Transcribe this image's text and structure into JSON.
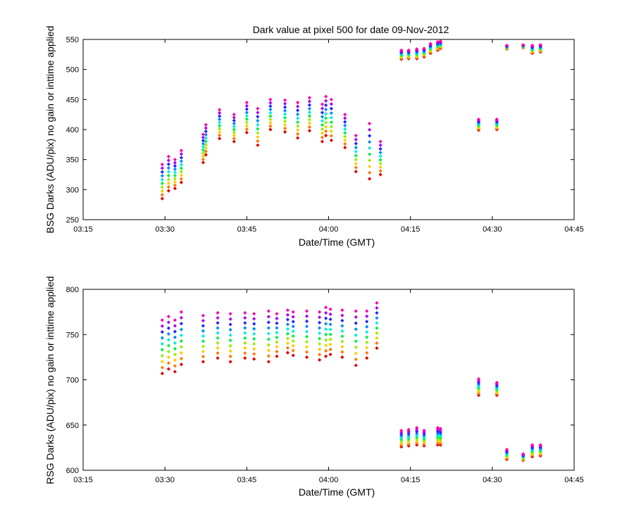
{
  "chart_data": [
    {
      "type": "scatter",
      "title": "Dark value at pixel 500 for date 09-Nov-2012",
      "xlabel": "Date/Time (GMT)",
      "ylabel": "BSG Darks (ADU/pix) no gain or inttime applied",
      "xlim": [
        "03:15",
        "04:45"
      ],
      "ylim": [
        250,
        550
      ],
      "x_ticks": [
        "03:15",
        "03:30",
        "03:45",
        "04:00",
        "04:15",
        "04:30",
        "04:45"
      ],
      "y_ticks": [
        "250",
        "300",
        "350",
        "400",
        "450",
        "500",
        "550"
      ],
      "grid": false,
      "marker": "diamond",
      "color_gradient": [
        "#dd0000",
        "#ff7700",
        "#ffcc00",
        "#99ee00",
        "#00ee44",
        "#00eedd",
        "#0088ff",
        "#2222ff",
        "#aa00ee",
        "#ff00aa"
      ],
      "groups": [
        {
          "times": [
            "03:29:30",
            "03:30:40",
            "03:31:50",
            "03:33:00"
          ],
          "range_min": [
            285,
            298,
            302,
            312
          ],
          "range_max": [
            342,
            355,
            350,
            365
          ]
        },
        {
          "times": [
            "03:37:00",
            "03:37:30",
            "03:40:00",
            "03:42:40"
          ],
          "range_min": [
            345,
            358,
            385,
            380
          ],
          "range_max": [
            392,
            408,
            433,
            425
          ]
        },
        {
          "times": [
            "03:45:00",
            "03:47:00",
            "03:49:20"
          ],
          "range_min": [
            395,
            374,
            400
          ],
          "range_max": [
            445,
            435,
            450
          ]
        },
        {
          "times": [
            "03:52:00",
            "03:54:20"
          ],
          "range_min": [
            396,
            386
          ],
          "range_max": [
            449,
            445
          ]
        },
        {
          "times": [
            "03:56:30",
            "03:58:50"
          ],
          "range_min": [
            398,
            380
          ],
          "range_max": [
            453,
            442
          ]
        },
        {
          "times": [
            "03:59:30",
            "04:00:30"
          ],
          "range_min": [
            390,
            382
          ],
          "range_max": [
            455,
            450
          ]
        },
        {
          "times": [
            "04:03:00",
            "04:05:00",
            "04:07:30",
            "04:09:30"
          ],
          "range_min": [
            370,
            330,
            318,
            325
          ],
          "range_max": [
            425,
            390,
            410,
            380
          ]
        },
        {
          "times": [
            "04:13:20",
            "04:14:40",
            "04:16:10",
            "04:17:30",
            "04:18:40"
          ],
          "range_min": [
            517,
            518,
            518,
            521,
            527
          ],
          "range_max": [
            532,
            532,
            534,
            535,
            543
          ]
        },
        {
          "times": [
            "04:20:00",
            "04:20:30"
          ],
          "range_min": [
            532,
            535
          ],
          "range_max": [
            546,
            547
          ]
        },
        {
          "times": [
            "04:27:30",
            "04:30:50"
          ],
          "range_min": [
            399,
            400
          ],
          "range_max": [
            417,
            417
          ]
        },
        {
          "times": [
            "04:32:40",
            "04:35:40"
          ],
          "range_min": [
            534,
            536
          ],
          "range_max": [
            540,
            541
          ]
        },
        {
          "times": [
            "04:37:20",
            "04:38:50"
          ],
          "range_min": [
            527,
            529
          ],
          "range_max": [
            540,
            541
          ]
        }
      ]
    },
    {
      "type": "scatter",
      "xlabel": "Date/Time (GMT)",
      "ylabel": "RSG Darks (ADU/pix) no gain or inttime applied",
      "xlim": [
        "03:15",
        "04:45"
      ],
      "ylim": [
        600,
        800
      ],
      "x_ticks": [
        "03:15",
        "03:30",
        "03:45",
        "04:00",
        "04:15",
        "04:30",
        "04:45"
      ],
      "y_ticks": [
        "600",
        "650",
        "700",
        "750",
        "800"
      ],
      "grid": false,
      "marker": "diamond",
      "color_gradient": [
        "#dd0000",
        "#ff7700",
        "#ffcc00",
        "#99ee00",
        "#00ee44",
        "#00eedd",
        "#0088ff",
        "#2222ff",
        "#aa00ee",
        "#ff00aa"
      ],
      "groups": [
        {
          "times": [
            "03:29:30",
            "03:30:40",
            "03:31:50",
            "03:33:00"
          ],
          "range_min": [
            707,
            712,
            709,
            717
          ],
          "range_max": [
            766,
            770,
            766,
            775
          ]
        },
        {
          "times": [
            "03:37:00",
            "03:39:40",
            "03:42:00"
          ],
          "range_min": [
            720,
            724,
            720
          ],
          "range_max": [
            771,
            774,
            773
          ]
        },
        {
          "times": [
            "03:44:40",
            "03:46:20",
            "03:49:00",
            "03:50:30"
          ],
          "range_min": [
            724,
            723,
            720,
            726
          ],
          "range_max": [
            774,
            773,
            776,
            773
          ]
        },
        {
          "times": [
            "03:52:30",
            "03:53:30",
            "03:56:00",
            "03:58:20"
          ],
          "range_min": [
            730,
            727,
            725,
            722
          ],
          "range_max": [
            777,
            775,
            776,
            775
          ]
        },
        {
          "times": [
            "03:59:30",
            "04:00:20",
            "04:02:30",
            "04:05:00"
          ],
          "range_min": [
            726,
            728,
            725,
            716
          ],
          "range_max": [
            780,
            778,
            777,
            776
          ]
        },
        {
          "times": [
            "04:07:00",
            "04:08:50"
          ],
          "range_min": [
            724,
            735
          ],
          "range_max": [
            776,
            785
          ]
        },
        {
          "times": [
            "04:13:20",
            "04:14:40",
            "04:16:10",
            "04:17:30",
            "04:20:00",
            "04:20:30"
          ],
          "range_min": [
            626,
            627,
            628,
            627,
            628,
            628
          ],
          "range_max": [
            644,
            645,
            647,
            644,
            647,
            646
          ]
        },
        {
          "times": [
            "04:27:30",
            "04:30:50"
          ],
          "range_min": [
            683,
            683
          ],
          "range_max": [
            701,
            697
          ]
        },
        {
          "times": [
            "04:32:40",
            "04:35:40",
            "04:37:20",
            "04:38:50"
          ],
          "range_min": [
            612,
            611,
            615,
            616
          ],
          "range_max": [
            623,
            618,
            628,
            628
          ]
        }
      ]
    }
  ]
}
